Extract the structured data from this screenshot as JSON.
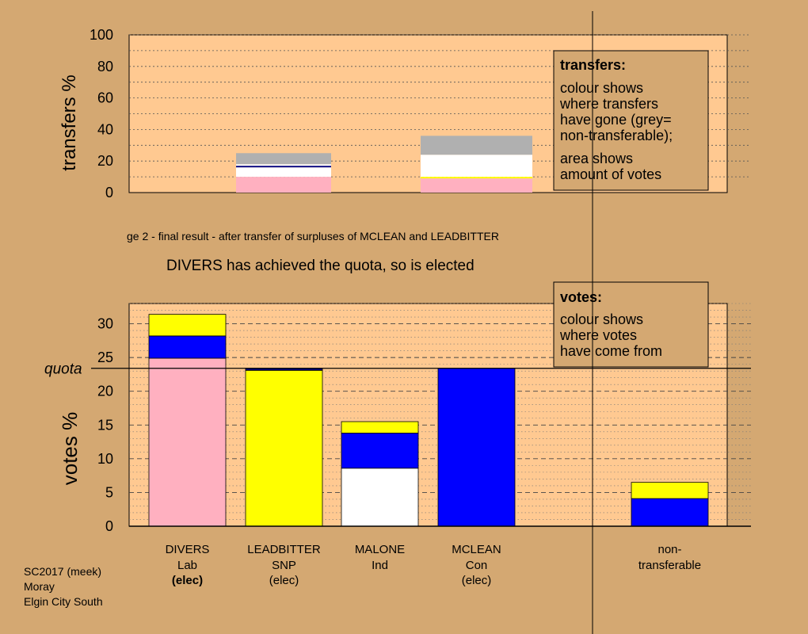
{
  "stage_caption": "ge 2 - final result - after transfer of surpluses of MCLEAN and LEADBITTER",
  "status_text": "DIVERS has achieved the quota, so is elected",
  "footer": {
    "line1": "SC2017 (meek)",
    "line2": "Moray",
    "line3": "Elgin City South"
  },
  "colors": {
    "background": "#d4a872",
    "plot_area": "#ffc991",
    "Lab": "#ffb0c0",
    "SNP": "#ffff00",
    "Ind": "#ffffff",
    "Con": "#0000ff",
    "non_transferable": "#b0b0b0"
  },
  "chart_data": [
    {
      "id": "transfers",
      "type": "bar",
      "stacked": true,
      "ylabel": "transfers %",
      "ylim": [
        0,
        100
      ],
      "yticks": [
        "0",
        "20",
        "40",
        "60",
        "80",
        "100"
      ],
      "grid": true,
      "legend_box": {
        "title": "transfers:",
        "lines": [
          "colour shows",
          "where transfers",
          "have gone (grey=",
          "non-transferable);"
        ],
        "lines2": [
          "area shows",
          "amount of votes"
        ]
      },
      "bars": [
        {
          "source": "LEADBITTER",
          "segments": [
            {
              "party": "Lab",
              "value": 10,
              "color": "#ffb0c0"
            },
            {
              "party": "Ind",
              "value": 6,
              "color": "#ffffff"
            },
            {
              "party": "Con",
              "value": 1,
              "color": "#000080"
            },
            {
              "party": "Ind",
              "value": 1,
              "color": "#ffffff"
            },
            {
              "party": "non-transferable",
              "value": 7,
              "color": "#b0b0b0"
            }
          ]
        },
        {
          "source": "MCLEAN",
          "segments": [
            {
              "party": "Lab",
              "value": 9,
              "color": "#ffb0c0"
            },
            {
              "party": "SNP",
              "value": 1,
              "color": "#ffff00"
            },
            {
              "party": "Ind",
              "value": 14,
              "color": "#ffffff"
            },
            {
              "party": "non-transferable",
              "value": 12,
              "color": "#b0b0b0"
            }
          ]
        }
      ]
    },
    {
      "id": "votes",
      "type": "bar",
      "stacked": true,
      "ylabel": "votes %",
      "ylim": [
        0,
        33
      ],
      "yticks": [
        "0",
        "5",
        "10",
        "15",
        "20",
        "25",
        "30"
      ],
      "quota": 23.4,
      "quota_label": "quota",
      "grid": true,
      "legend_box": {
        "title": "votes:",
        "lines": [
          "colour shows",
          "where votes",
          "have come from"
        ]
      },
      "categories": [
        {
          "name": "DIVERS",
          "party": "Lab",
          "status": "(elec)",
          "bold_status": true
        },
        {
          "name": "LEADBITTER",
          "party": "SNP",
          "status": "(elec)",
          "bold_status": false
        },
        {
          "name": "MALONE",
          "party": "Ind",
          "status": "",
          "bold_status": false
        },
        {
          "name": "MCLEAN",
          "party": "Con",
          "status": "(elec)",
          "bold_status": false
        },
        {
          "name": "non-",
          "party": "transferable",
          "status": "",
          "bold_status": false
        }
      ],
      "bars": [
        {
          "candidate": "DIVERS",
          "segments": [
            {
              "from": "Lab",
              "value": 24.9,
              "color": "#ffb0c0"
            },
            {
              "from": "Con",
              "value": 3.3,
              "color": "#0000ff"
            },
            {
              "from": "SNP",
              "value": 3.2,
              "color": "#ffff00"
            }
          ]
        },
        {
          "candidate": "LEADBITTER",
          "segments": [
            {
              "from": "SNP",
              "value": 23.1,
              "color": "#ffff00"
            },
            {
              "from": "Con",
              "value": 0.3,
              "color": "#000080"
            }
          ]
        },
        {
          "candidate": "MALONE",
          "segments": [
            {
              "from": "Ind",
              "value": 8.6,
              "color": "#ffffff"
            },
            {
              "from": "Con",
              "value": 5.2,
              "color": "#0000ff"
            },
            {
              "from": "SNP",
              "value": 1.7,
              "color": "#ffff00"
            }
          ]
        },
        {
          "candidate": "MCLEAN",
          "segments": [
            {
              "from": "Con",
              "value": 23.4,
              "color": "#0000ff"
            }
          ]
        },
        {
          "candidate": "non-transferable",
          "segments": [
            {
              "from": "Con",
              "value": 4.1,
              "color": "#0000ff"
            },
            {
              "from": "SNP",
              "value": 2.4,
              "color": "#ffff00"
            }
          ]
        }
      ]
    }
  ]
}
